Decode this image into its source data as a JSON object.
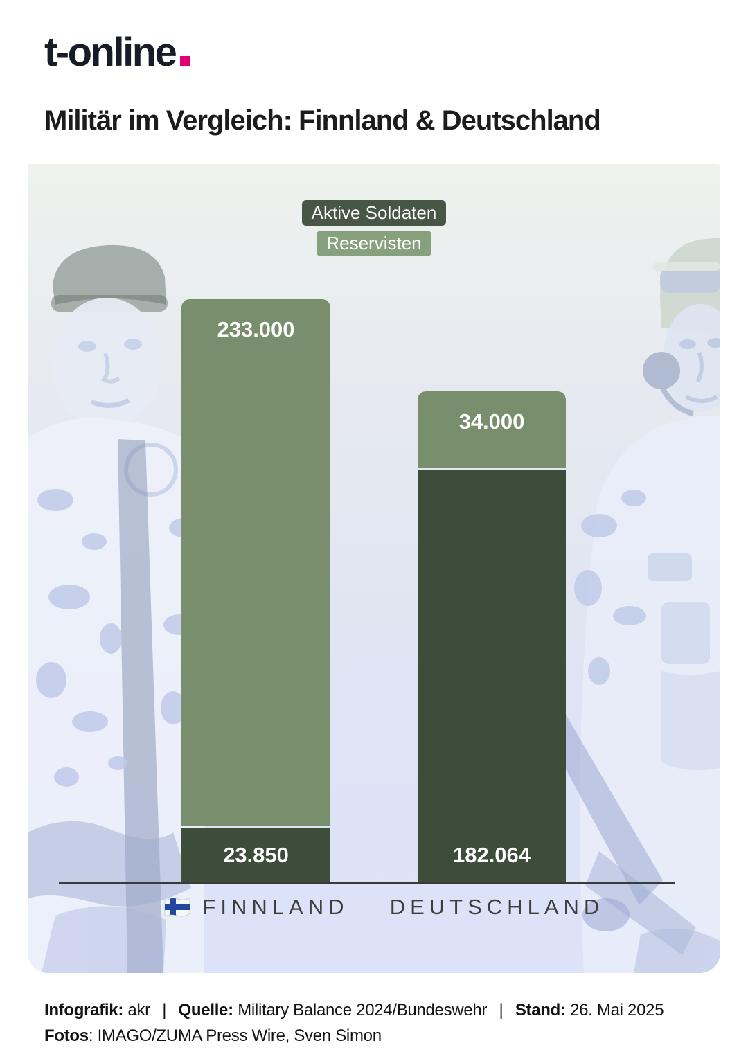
{
  "brand": {
    "logo_text": "t-online",
    "dot_color": "#e20074"
  },
  "title": "Militär im Vergleich: Finnland & Deutschland",
  "legend": {
    "active_label": "Aktive Soldaten",
    "reserve_label": "Reservisten"
  },
  "chart_data": {
    "type": "bar",
    "stacked": true,
    "title": "Militär im Vergleich: Finnland & Deutschland",
    "categories": [
      "FINNLAND",
      "DEUTSCHLAND"
    ],
    "series": [
      {
        "name": "Reservisten",
        "color": "#798e6c",
        "values": [
          233000,
          34000
        ],
        "labels": [
          "233.000",
          "34.000"
        ]
      },
      {
        "name": "Aktive Soldaten",
        "color": "#3e4c3a",
        "values": [
          23850,
          182064
        ],
        "labels": [
          "23.850",
          "182.064"
        ]
      }
    ],
    "legend_position": "top",
    "grid": false,
    "value_labels_shown": true,
    "colors": {
      "active": "#3e4c3a",
      "reserve": "#798e6c",
      "legend_active_badge": "#485646",
      "legend_reserve_badge": "#87a17f"
    }
  },
  "footer": {
    "infografik_label": "Infografik:",
    "infografik_value": "akr",
    "separator": "|",
    "quelle_label": "Quelle:",
    "quelle_value": "Military Balance 2024/Bundeswehr",
    "stand_label": "Stand:",
    "stand_value": "26. Mai 2025",
    "fotos_label": "Fotos",
    "fotos_value": ": IMAGO/ZUMA Press Wire, Sven Simon"
  }
}
